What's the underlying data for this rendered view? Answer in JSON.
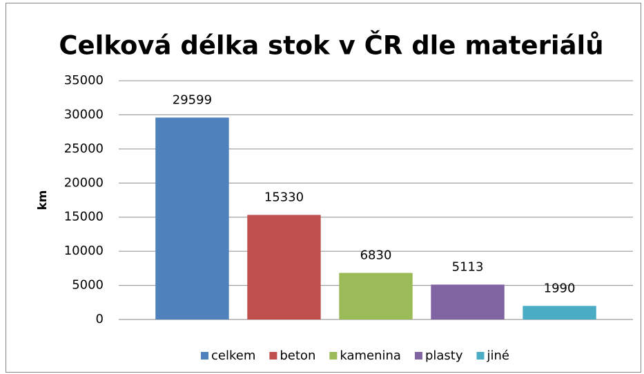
{
  "chart_data": {
    "type": "bar",
    "title": "Celková délka stok v ČR dle materiálů",
    "ylabel": "km",
    "categories": [
      null
    ],
    "series": [
      {
        "name": "celkem",
        "color": "#4f81bd",
        "values": [
          29599
        ]
      },
      {
        "name": "beton",
        "color": "#c0504d",
        "values": [
          15330
        ]
      },
      {
        "name": "kamenina",
        "color": "#9bbb59",
        "values": [
          6830
        ]
      },
      {
        "name": "plasty",
        "color": "#8064a2",
        "values": [
          5113
        ]
      },
      {
        "name": "jiné",
        "color": "#4bacc6",
        "values": [
          1990
        ]
      }
    ],
    "ylim": [
      0,
      35000
    ],
    "yticks": [
      0,
      5000,
      10000,
      15000,
      20000,
      25000,
      30000,
      35000
    ],
    "grid": true,
    "legend": "bottom"
  }
}
